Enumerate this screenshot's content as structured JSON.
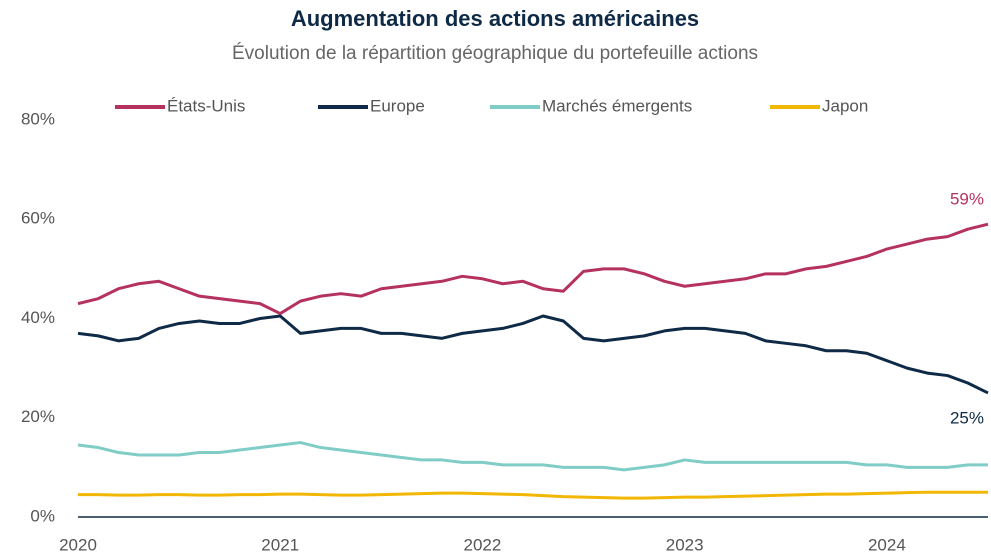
{
  "chart_data": {
    "type": "line",
    "title": "Augmentation des actions américaines",
    "subtitle": "Évolution de la répartition géographique du portefeuille actions",
    "x": [
      2020.0,
      2020.1,
      2020.2,
      2020.3,
      2020.4,
      2020.5,
      2020.6,
      2020.7,
      2020.8,
      2020.9,
      2021.0,
      2021.1,
      2021.2,
      2021.3,
      2021.4,
      2021.5,
      2021.6,
      2021.7,
      2021.8,
      2021.9,
      2022.0,
      2022.1,
      2022.2,
      2022.3,
      2022.4,
      2022.5,
      2022.6,
      2022.7,
      2022.8,
      2022.9,
      2023.0,
      2023.1,
      2023.2,
      2023.3,
      2023.4,
      2023.5,
      2023.6,
      2023.7,
      2023.8,
      2023.9,
      2024.0,
      2024.1,
      2024.2,
      2024.3,
      2024.4,
      2024.5
    ],
    "series": [
      {
        "name": "États-Unis",
        "color": "#b5325f",
        "values": [
          43,
          44,
          46,
          47,
          47.5,
          46,
          44.5,
          44,
          43.5,
          43,
          41,
          43.5,
          44.5,
          45,
          44.5,
          46,
          46.5,
          47,
          47.5,
          48.5,
          48,
          47,
          47.5,
          46,
          45.5,
          49.5,
          50,
          50,
          49,
          47.5,
          46.5,
          47,
          47.5,
          48,
          49,
          49,
          50,
          50.5,
          51.5,
          52.5,
          54,
          55,
          56,
          56.5,
          58,
          59
        ],
        "value_labels": [
          null,
          null,
          null,
          null,
          null,
          null,
          null,
          null,
          null,
          null,
          null,
          null,
          null,
          null,
          null,
          null,
          null,
          null,
          null,
          null,
          null,
          null,
          null,
          null,
          null,
          null,
          null,
          null,
          null,
          null,
          null,
          null,
          null,
          null,
          null,
          null,
          null,
          null,
          null,
          null,
          null,
          null,
          null,
          null,
          null,
          "59%"
        ]
      },
      {
        "name": "Europe",
        "color": "#0f2a47",
        "values": [
          37,
          36.5,
          35.5,
          36,
          38,
          39,
          39.5,
          39,
          39,
          40,
          40.5,
          37,
          37.5,
          38,
          38,
          37,
          37,
          36.5,
          36,
          37,
          37.5,
          38,
          39,
          40.5,
          39.5,
          36,
          35.5,
          36,
          36.5,
          37.5,
          38,
          38,
          37.5,
          37,
          35.5,
          35,
          34.5,
          33.5,
          33.5,
          33,
          31.5,
          30,
          29,
          28.5,
          27,
          25
        ],
        "value_labels": [
          null,
          null,
          null,
          null,
          null,
          null,
          null,
          null,
          null,
          null,
          null,
          null,
          null,
          null,
          null,
          null,
          null,
          null,
          null,
          null,
          null,
          null,
          null,
          null,
          null,
          null,
          null,
          null,
          null,
          null,
          null,
          null,
          null,
          null,
          null,
          null,
          null,
          null,
          null,
          null,
          null,
          null,
          null,
          null,
          null,
          "25%"
        ]
      },
      {
        "name": "Marchés émergents",
        "color": "#7fcdc6",
        "values": [
          14.5,
          14,
          13,
          12.5,
          12.5,
          12.5,
          13,
          13,
          13.5,
          14,
          14.5,
          15,
          14,
          13.5,
          13,
          12.5,
          12,
          11.5,
          11.5,
          11,
          11,
          10.5,
          10.5,
          10.5,
          10,
          10,
          10,
          9.5,
          10,
          10.5,
          11.5,
          11,
          11,
          11,
          11,
          11,
          11,
          11,
          11,
          10.5,
          10.5,
          10,
          10,
          10,
          10.5,
          10.5
        ]
      },
      {
        "name": "Japon",
        "color": "#f2b705",
        "values": [
          4.5,
          4.5,
          4.4,
          4.4,
          4.5,
          4.5,
          4.4,
          4.4,
          4.5,
          4.5,
          4.6,
          4.6,
          4.5,
          4.4,
          4.4,
          4.5,
          4.6,
          4.7,
          4.8,
          4.8,
          4.7,
          4.6,
          4.5,
          4.3,
          4.1,
          4,
          3.9,
          3.8,
          3.8,
          3.9,
          4,
          4,
          4.1,
          4.2,
          4.3,
          4.4,
          4.5,
          4.6,
          4.6,
          4.7,
          4.8,
          4.9,
          5,
          5,
          5,
          5
        ]
      }
    ],
    "xlim": [
      2020,
      2024.5
    ],
    "xticks": [
      2020,
      2021,
      2022,
      2023,
      2024
    ],
    "ylim": [
      0,
      80
    ],
    "yticks": [
      {
        "value": 0,
        "label": "0%"
      },
      {
        "value": 20,
        "label": "20%"
      },
      {
        "value": 40,
        "label": "40%"
      },
      {
        "value": 60,
        "label": "60%"
      },
      {
        "value": 80,
        "label": "80%"
      }
    ],
    "grid": false,
    "legend": "top"
  }
}
